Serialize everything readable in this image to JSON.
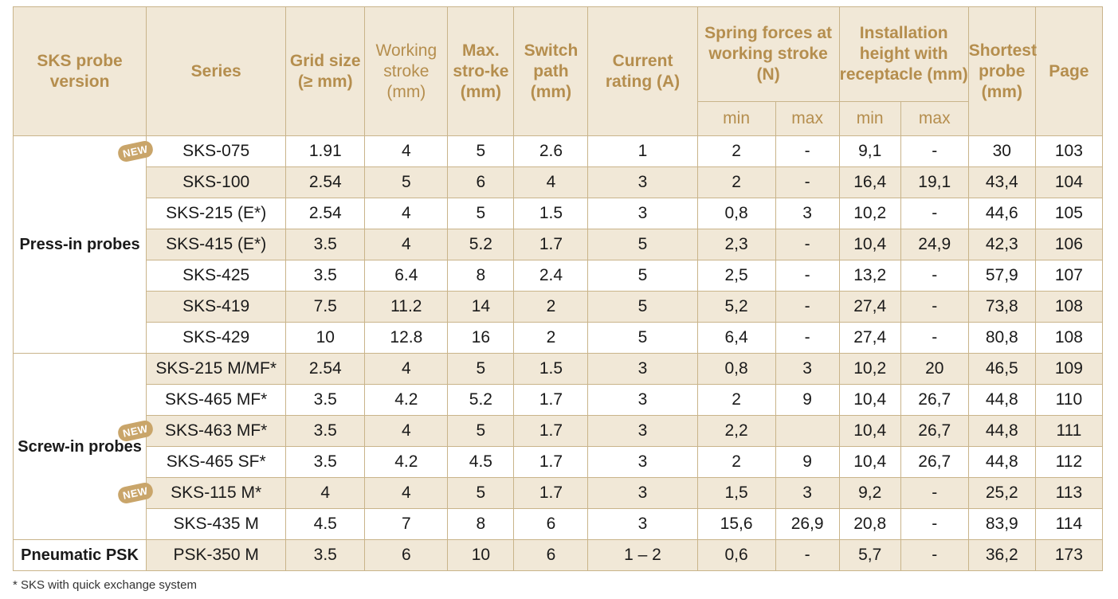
{
  "header": {
    "version": "SKS probe version",
    "series": "Series",
    "grid": "Grid size (≥ mm)",
    "working": "Working stroke (mm)",
    "max_stroke": "Max. stro-ke (mm)",
    "switch": "Switch path (mm)",
    "current": "Current rating (A)",
    "spring": "Spring forces at working stroke (N)",
    "install": "Installation height with receptacle (mm)",
    "shortest": "Shortest probe (mm)",
    "page": "Page",
    "min": "min",
    "max": "max"
  },
  "badge": "NEW",
  "groups": {
    "press": "Press-in probes",
    "screw": "Screw-in probes",
    "pneumatic": "Pneumatic PSK"
  },
  "rows": [
    {
      "series": "SKS-075",
      "grid": "1.91",
      "work": "4",
      "max": "5",
      "switch": "2.6",
      "cur": "1",
      "smin": "2",
      "smax": "-",
      "imin": "9,1",
      "imax": "-",
      "short": "30",
      "page": "103"
    },
    {
      "series": "SKS-100",
      "grid": "2.54",
      "work": "5",
      "max": "6",
      "switch": "4",
      "cur": "3",
      "smin": "2",
      "smax": "-",
      "imin": "16,4",
      "imax": "19,1",
      "short": "43,4",
      "page": "104"
    },
    {
      "series": "SKS-215 (E*)",
      "grid": "2.54",
      "work": "4",
      "max": "5",
      "switch": "1.5",
      "cur": "3",
      "smin": "0,8",
      "smax": "3",
      "imin": "10,2",
      "imax": "-",
      "short": "44,6",
      "page": "105"
    },
    {
      "series": "SKS-415 (E*)",
      "grid": "3.5",
      "work": "4",
      "max": "5.2",
      "switch": "1.7",
      "cur": "5",
      "smin": "2,3",
      "smax": "-",
      "imin": "10,4",
      "imax": "24,9",
      "short": "42,3",
      "page": "106"
    },
    {
      "series": "SKS-425",
      "grid": "3.5",
      "work": "6.4",
      "max": "8",
      "switch": "2.4",
      "cur": "5",
      "smin": "2,5",
      "smax": "-",
      "imin": "13,2",
      "imax": "-",
      "short": "57,9",
      "page": "107"
    },
    {
      "series": "SKS-419",
      "grid": "7.5",
      "work": "11.2",
      "max": "14",
      "switch": "2",
      "cur": "5",
      "smin": "5,2",
      "smax": "-",
      "imin": "27,4",
      "imax": "-",
      "short": "73,8",
      "page": "108"
    },
    {
      "series": "SKS-429",
      "grid": "10",
      "work": "12.8",
      "max": "16",
      "switch": "2",
      "cur": "5",
      "smin": "6,4",
      "smax": "-",
      "imin": "27,4",
      "imax": "-",
      "short": "80,8",
      "page": "108"
    },
    {
      "series": "SKS-215 M/MF*",
      "grid": "2.54",
      "work": "4",
      "max": "5",
      "switch": "1.5",
      "cur": "3",
      "smin": "0,8",
      "smax": "3",
      "imin": "10,2",
      "imax": "20",
      "short": "46,5",
      "page": "109"
    },
    {
      "series": "SKS-465 MF*",
      "grid": "3.5",
      "work": "4.2",
      "max": "5.2",
      "switch": "1.7",
      "cur": "3",
      "smin": "2",
      "smax": "9",
      "imin": "10,4",
      "imax": "26,7",
      "short": "44,8",
      "page": "110"
    },
    {
      "series": "SKS-463 MF*",
      "grid": "3.5",
      "work": "4",
      "max": "5",
      "switch": "1.7",
      "cur": "3",
      "smin": "2,2",
      "smax": "",
      "imin": "10,4",
      "imax": "26,7",
      "short": "44,8",
      "page": "111"
    },
    {
      "series": "SKS-465 SF*",
      "grid": "3.5",
      "work": "4.2",
      "max": "4.5",
      "switch": "1.7",
      "cur": "3",
      "smin": "2",
      "smax": "9",
      "imin": "10,4",
      "imax": "26,7",
      "short": "44,8",
      "page": "112"
    },
    {
      "series": "SKS-115 M*",
      "grid": "4",
      "work": "4",
      "max": "5",
      "switch": "1.7",
      "cur": "3",
      "smin": "1,5",
      "smax": "3",
      "imin": "9,2",
      "imax": "-",
      "short": "25,2",
      "page": "113"
    },
    {
      "series": "SKS-435 M",
      "grid": "4.5",
      "work": "7",
      "max": "8",
      "switch": "6",
      "cur": "3",
      "smin": "15,6",
      "smax": "26,9",
      "imin": "20,8",
      "imax": "-",
      "short": "83,9",
      "page": "114"
    },
    {
      "series": "PSK-350 M",
      "grid": "3.5",
      "work": "6",
      "max": "10",
      "switch": "6",
      "cur": "1 – 2",
      "smin": "0,6",
      "smax": "-",
      "imin": "5,7",
      "imax": "-",
      "short": "36,2",
      "page": "173"
    }
  ],
  "footnote": "* SKS with quick exchange system"
}
